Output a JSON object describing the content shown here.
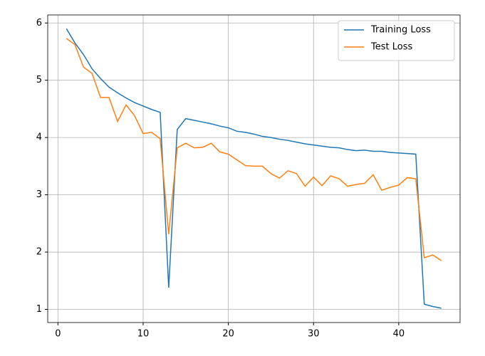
{
  "chart_data": {
    "type": "line",
    "x": [
      1,
      2,
      3,
      4,
      5,
      6,
      7,
      8,
      9,
      10,
      11,
      12,
      13,
      14,
      15,
      16,
      17,
      18,
      19,
      20,
      21,
      22,
      23,
      24,
      25,
      26,
      27,
      28,
      29,
      30,
      31,
      32,
      33,
      34,
      35,
      36,
      37,
      38,
      39,
      40,
      41,
      42,
      43,
      44,
      45
    ],
    "series": [
      {
        "name": "Training Loss",
        "color": "#1f77b4",
        "values": [
          5.9,
          5.65,
          5.45,
          5.2,
          5.03,
          4.88,
          4.78,
          4.69,
          4.61,
          4.55,
          4.49,
          4.44,
          1.38,
          4.14,
          4.33,
          4.3,
          4.27,
          4.24,
          4.2,
          4.17,
          4.11,
          4.09,
          4.06,
          4.02,
          4.0,
          3.97,
          3.95,
          3.92,
          3.89,
          3.87,
          3.85,
          3.83,
          3.82,
          3.79,
          3.77,
          3.78,
          3.76,
          3.76,
          3.74,
          3.73,
          3.72,
          3.71,
          1.09,
          1.05,
          1.02
        ]
      },
      {
        "name": "Test Loss",
        "color": "#ff7f0e",
        "values": [
          5.73,
          5.62,
          5.23,
          5.12,
          4.7,
          4.7,
          4.28,
          4.57,
          4.38,
          4.07,
          4.09,
          3.98,
          2.31,
          3.82,
          3.9,
          3.82,
          3.83,
          3.9,
          3.75,
          3.71,
          3.61,
          3.51,
          3.5,
          3.5,
          3.37,
          3.29,
          3.42,
          3.37,
          3.15,
          3.31,
          3.16,
          3.33,
          3.28,
          3.15,
          3.18,
          3.2,
          3.35,
          3.08,
          3.13,
          3.17,
          3.3,
          3.28,
          1.9,
          1.95,
          1.85
        ]
      }
    ],
    "xlim": [
      -1.2,
      47.2
    ],
    "xticks": [
      0,
      10,
      20,
      30,
      40
    ],
    "ylim": [
      0.77,
      6.14
    ],
    "yticks": [
      1,
      2,
      3,
      4,
      5,
      6
    ],
    "grid": true,
    "legend": "upper-right"
  }
}
